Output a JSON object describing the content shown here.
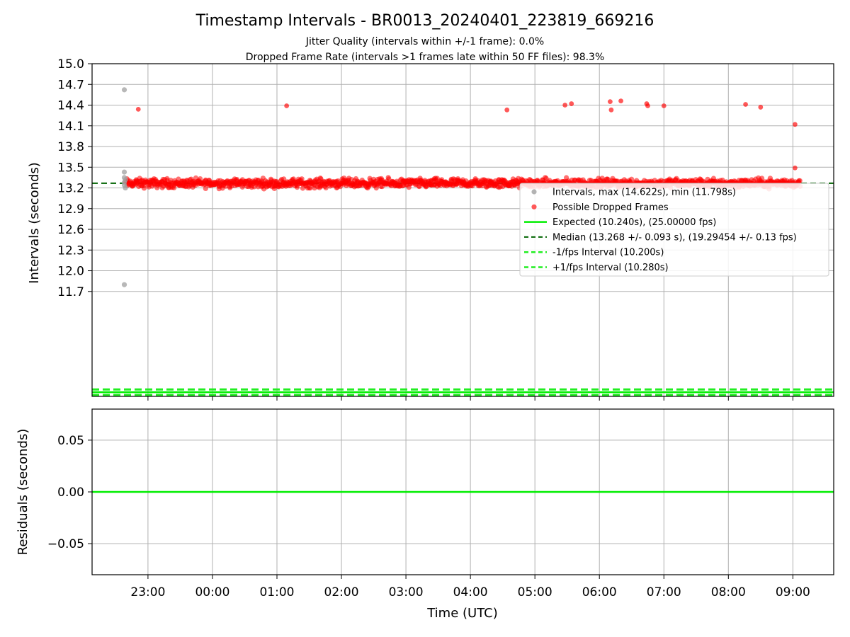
{
  "colors": {
    "interval": "#a0a0a0",
    "dropped": "#ff0000",
    "expected": "#00ee00",
    "median": "#006400",
    "fps_bound": "#22ee22",
    "residual": "#00ee00",
    "grid": "#b0b0b0"
  },
  "chart_data": [
    {
      "type": "scatter",
      "title": "Timestamp Intervals - BR0013_20240401_223819_669216",
      "subtitle_lines": [
        "Jitter Quality (intervals within +/-1 frame): 0.0%",
        "Dropped Frame Rate (intervals >1 frames late within 50 FF files): 98.3%"
      ],
      "ylabel": "Intervals (seconds)",
      "ylim": [
        10.18,
        15.0
      ],
      "yticks": [
        "11.7",
        "12.0",
        "12.3",
        "12.6",
        "12.9",
        "13.2",
        "13.5",
        "13.8",
        "14.1",
        "14.4",
        "14.7",
        "15.0"
      ],
      "grid": true,
      "legend_position": "center-right",
      "legend": [
        "Intervals, max (14.622s), min (11.798s)",
        "Possible Dropped Frames",
        "Expected (10.240s), (25.00000 fps)",
        "Median (13.268 +/- 0.093 s), (19.29454 +/- 0.13 fps)",
        "-1/fps Interval (10.200s)",
        "+1/fps Interval (10.280s)"
      ],
      "series": [
        {
          "kind": "normal_intervals",
          "points": [
            {
              "x": "2024-04-01 22:38",
              "y": 14.622
            },
            {
              "x": "2024-04-01 22:38",
              "y": 11.798
            },
            {
              "x": "2024-04-01 22:38",
              "y": 13.43
            },
            {
              "x": "2024-04-01 22:38",
              "y": 13.35
            },
            {
              "x": "2024-04-01 22:38",
              "y": 13.28
            },
            {
              "x": "2024-04-01 22:38",
              "y": 13.24
            },
            {
              "x": "2024-04-01 22:39",
              "y": 13.2
            },
            {
              "x": "2024-04-01 22:39",
              "y": 13.32
            }
          ]
        },
        {
          "kind": "dropped_frames",
          "band": {
            "x_start": "2024-04-01 22:39",
            "x_end": "2024-04-02 09:07",
            "y_center": 13.268,
            "y_spread": 0.08
          },
          "points": [
            {
              "x": "2024-04-01 22:51",
              "y": 14.34
            },
            {
              "x": "2024-04-02 01:09",
              "y": 14.39
            },
            {
              "x": "2024-04-02 04:34",
              "y": 14.33
            },
            {
              "x": "2024-04-02 05:28",
              "y": 14.4
            },
            {
              "x": "2024-04-02 05:34",
              "y": 14.42
            },
            {
              "x": "2024-04-02 06:10",
              "y": 14.45
            },
            {
              "x": "2024-04-02 06:11",
              "y": 14.33
            },
            {
              "x": "2024-04-02 06:20",
              "y": 14.46
            },
            {
              "x": "2024-04-02 06:44",
              "y": 14.42
            },
            {
              "x": "2024-04-02 06:45",
              "y": 14.39
            },
            {
              "x": "2024-04-02 07:00",
              "y": 14.39
            },
            {
              "x": "2024-04-02 08:16",
              "y": 14.41
            },
            {
              "x": "2024-04-02 08:30",
              "y": 14.37
            },
            {
              "x": "2024-04-02 09:02",
              "y": 14.12
            },
            {
              "x": "2024-04-02 09:02",
              "y": 13.49
            }
          ]
        }
      ],
      "hlines": [
        {
          "name": "expected",
          "y": 10.24
        },
        {
          "name": "median",
          "y": 13.268
        },
        {
          "name": "minus_fps",
          "y": 10.2
        },
        {
          "name": "plus_fps",
          "y": 10.28
        }
      ]
    },
    {
      "type": "line",
      "xlabel": "Time (UTC)",
      "ylabel": "Residuals (seconds)",
      "ylim": [
        -0.08,
        0.08
      ],
      "yticks": [
        "−0.05",
        "0.00",
        "0.05"
      ],
      "xlim": [
        "2024-04-01 22:08",
        "2024-04-02 09:38"
      ],
      "xticks": [
        "23:00",
        "00:00",
        "01:00",
        "02:00",
        "03:00",
        "04:00",
        "05:00",
        "06:00",
        "07:00",
        "08:00",
        "09:00"
      ],
      "grid": true,
      "series": [
        {
          "kind": "residuals",
          "x": [
            "2024-04-01 22:08",
            "2024-04-02 09:38"
          ],
          "values": [
            0.0,
            0.0
          ]
        }
      ]
    }
  ]
}
